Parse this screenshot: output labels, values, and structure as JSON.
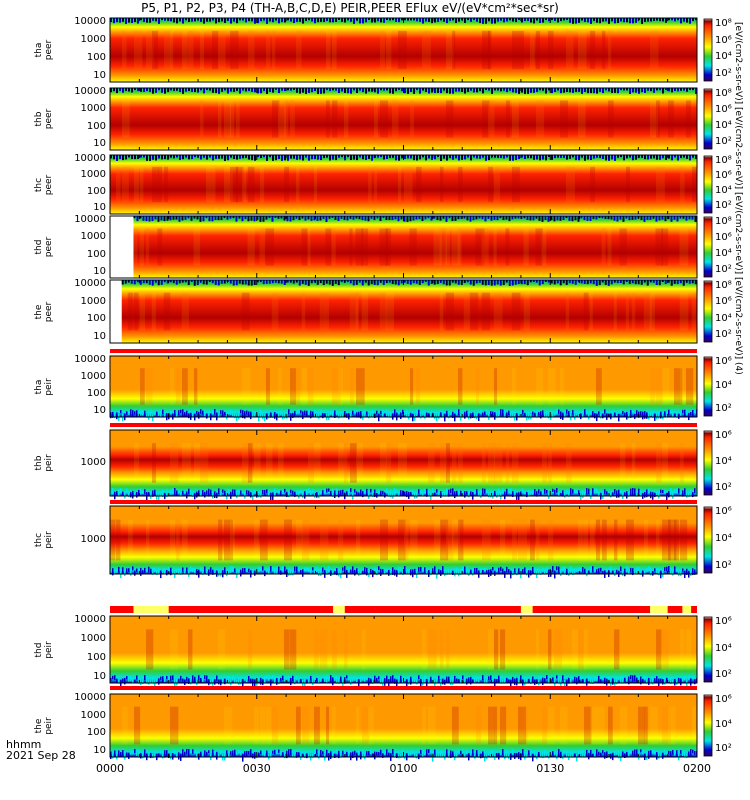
{
  "title": "P5, P1, P2, P3, P4 (TH-A,B,C,D,E) PEIR,PEER EFlux eV/(eV*cm²*sec*sr)",
  "x_axis": {
    "ticks": [
      "0000",
      "0030",
      "0100",
      "0130",
      "0200"
    ],
    "label_line1": "hhmm",
    "label_line2": "2021 Sep 28"
  },
  "colorbar_units": "[eV/(cm2-s-sr-eV)] [eV/(cm2-s-sr-eV)] [eV/(cm2-s-sr-eV)] [eV/(cm2-s-sr-eV)] (4)",
  "colors": {
    "low": "#0000cc",
    "cyan": "#00e5e5",
    "green": "#33cc33",
    "yellow": "#ffff00",
    "orange": "#ff9900",
    "red": "#ff2200",
    "darkred": "#b30000",
    "flag_red": "#ff0000",
    "flag_yellow": "#ffff66"
  },
  "chart_data": {
    "type": "heatmap",
    "x_range": [
      "00:00",
      "02:00"
    ],
    "colorbar_ticks_electron": [
      "10²",
      "10⁴",
      "10⁶",
      "10⁸"
    ],
    "colorbar_ticks_ion": [
      "10²",
      "10⁴",
      "10⁶"
    ],
    "panels": [
      {
        "probe": "tha",
        "species": "peer",
        "label_line1": "tha",
        "label_line2": "peer",
        "yticks": [
          "10000",
          "1000",
          "100",
          "10"
        ],
        "scale": "log",
        "kind": "electron",
        "data_start_frac": 0.0
      },
      {
        "probe": "thb",
        "species": "peer",
        "label_line1": "thb",
        "label_line2": "peer",
        "yticks": [
          "10000",
          "1000",
          "100",
          "10"
        ],
        "scale": "log",
        "kind": "electron",
        "data_start_frac": 0.0
      },
      {
        "probe": "thc",
        "species": "peer",
        "label_line1": "thc",
        "label_line2": "peer",
        "yticks": [
          "10000",
          "1000",
          "100",
          "10"
        ],
        "scale": "log",
        "kind": "electron",
        "data_start_frac": 0.0
      },
      {
        "probe": "thd",
        "species": "peer",
        "label_line1": "thd",
        "label_line2": "peer",
        "yticks": [
          "10000",
          "1000",
          "100",
          "10"
        ],
        "scale": "log",
        "kind": "electron",
        "data_start_frac": 0.04
      },
      {
        "probe": "the",
        "species": "peer",
        "label_line1": "the",
        "label_line2": "peer",
        "yticks": [
          "10000",
          "1000",
          "100",
          "10"
        ],
        "scale": "log",
        "kind": "electron",
        "data_start_frac": 0.02
      },
      {
        "probe": "tha",
        "species": "peir",
        "label_line1": "tha",
        "label_line2": "peir",
        "yticks": [
          "10000",
          "1000",
          "100",
          "10"
        ],
        "scale": "log",
        "kind": "ion",
        "data_start_frac": 0.0
      },
      {
        "probe": "thb",
        "species": "peir",
        "label_line1": "thb",
        "label_line2": "peir",
        "yticks": [
          "1000"
        ],
        "scale": "log",
        "kind": "ion_narrow",
        "data_start_frac": 0.0
      },
      {
        "probe": "thc",
        "species": "peir",
        "label_line1": "thc",
        "label_line2": "peir",
        "yticks": [
          "1000"
        ],
        "scale": "log",
        "kind": "ion_narrow",
        "data_start_frac": 0.0
      },
      {
        "probe": "thd",
        "species": "peir",
        "label_line1": "thd",
        "label_line2": "peir",
        "yticks": [
          "10000",
          "1000",
          "100",
          "10"
        ],
        "scale": "log",
        "kind": "ion",
        "data_start_frac": 0.0
      },
      {
        "probe": "the",
        "species": "peir",
        "label_line1": "the",
        "label_line2": "peir",
        "yticks": [
          "10000",
          "1000",
          "100",
          "10"
        ],
        "scale": "log",
        "kind": "ion",
        "data_start_frac": 0.0
      }
    ]
  }
}
